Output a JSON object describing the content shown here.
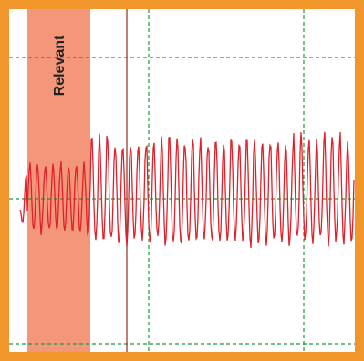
{
  "band_label": "Relevant"
}
